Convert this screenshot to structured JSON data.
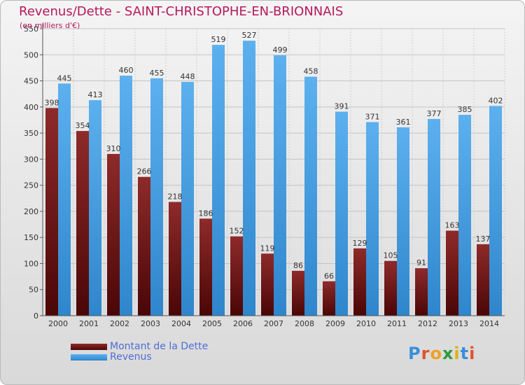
{
  "title": "Revenus/Dette - SAINT-CHRISTOPHE-EN-BRIONNAIS",
  "subtitle": "(en milliers d'€)",
  "logo": "Proxiti",
  "colors": {
    "title": "#b5195d",
    "dette": "#7a1a1a",
    "revenus": "#4a9fe0",
    "legend_text": "#4f6cd6"
  },
  "chart_data": {
    "type": "bar",
    "title": "Revenus/Dette - SAINT-CHRISTOPHE-EN-BRIONNAIS",
    "ylabel": "(en milliers d'€)",
    "xlabel": "",
    "categories": [
      "2000",
      "2001",
      "2002",
      "2003",
      "2004",
      "2005",
      "2006",
      "2007",
      "2008",
      "2009",
      "2010",
      "2011",
      "2012",
      "2013",
      "2014"
    ],
    "series": [
      {
        "name": "Montant de la Dette",
        "color": "#7a1a1a",
        "values": [
          398,
          354,
          310,
          266,
          218,
          186,
          152,
          119,
          86,
          66,
          129,
          105,
          91,
          163,
          137
        ]
      },
      {
        "name": "Revenus",
        "color": "#4a9fe0",
        "values": [
          445,
          413,
          460,
          455,
          448,
          519,
          527,
          499,
          458,
          391,
          371,
          361,
          377,
          385,
          402
        ]
      }
    ],
    "ylim": [
      0,
      550
    ],
    "yticks": [
      0,
      50,
      100,
      150,
      200,
      250,
      300,
      350,
      400,
      450,
      500,
      550
    ],
    "grid": true,
    "legend_position": "bottom-left"
  },
  "legend": {
    "items": [
      {
        "label": "Montant de la Dette",
        "color": "#7a1a1a"
      },
      {
        "label": "Revenus",
        "color": "#4a9fe0"
      }
    ]
  }
}
